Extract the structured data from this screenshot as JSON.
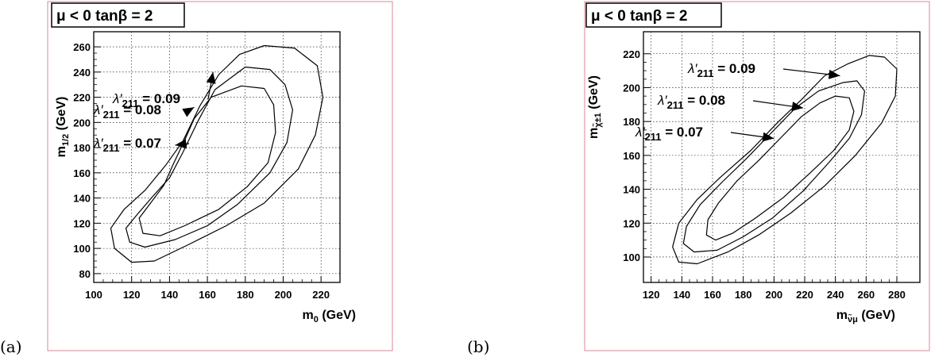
{
  "chart_data": [
    {
      "type": "contour",
      "panel_label": "(a)",
      "title": "μ < 0   tanβ = 2",
      "xlabel": "m0 (GeV)",
      "ylabel": "m1/2 (GeV)",
      "xlim": [
        100,
        230
      ],
      "ylim": [
        73,
        272
      ],
      "xticks": [
        100,
        120,
        140,
        160,
        180,
        200,
        220
      ],
      "yticks": [
        80,
        100,
        120,
        140,
        160,
        180,
        200,
        220,
        240,
        260
      ],
      "grid": true,
      "contours": [
        {
          "label": "λ′211 = 0.09",
          "points": [
            [
              190,
              261
            ],
            [
              206,
              259
            ],
            [
              218,
              245
            ],
            [
              221,
              220
            ],
            [
              217,
              190
            ],
            [
              208,
              163
            ],
            [
              190,
              136
            ],
            [
              170,
              118
            ],
            [
              150,
              103
            ],
            [
              132,
              90
            ],
            [
              120,
              89
            ],
            [
              111,
              100
            ],
            [
              109,
              116
            ],
            [
              116,
              131
            ],
            [
              127,
              146
            ],
            [
              138,
              166
            ],
            [
              147,
              185
            ],
            [
              156,
              213
            ],
            [
              166,
              238
            ],
            [
              177,
              254
            ],
            [
              190,
              261
            ]
          ]
        },
        {
          "label": "λ′211 = 0.08",
          "points": [
            [
              180,
              244
            ],
            [
              193,
              242
            ],
            [
              201,
              230
            ],
            [
              205,
              210
            ],
            [
              202,
              184
            ],
            [
              193,
              160
            ],
            [
              176,
              135
            ],
            [
              160,
              118
            ],
            [
              143,
              107
            ],
            [
              127,
              101
            ],
            [
              119,
              105
            ],
            [
              117,
              116
            ],
            [
              123,
              127
            ],
            [
              131,
              141
            ],
            [
              140,
              156
            ],
            [
              147,
              176
            ],
            [
              155,
              201
            ],
            [
              164,
              226
            ],
            [
              180,
              244
            ]
          ]
        },
        {
          "label": "λ′211 = 0.07",
          "points": [
            [
              178,
              229
            ],
            [
              190,
              227
            ],
            [
              195,
              214
            ],
            [
              196,
              192
            ],
            [
              192,
              168
            ],
            [
              181,
              149
            ],
            [
              166,
              131
            ],
            [
              148,
              118
            ],
            [
              135,
              110
            ],
            [
              126,
              112
            ],
            [
              124,
              124
            ],
            [
              130,
              136
            ],
            [
              137,
              150
            ],
            [
              142,
              167
            ],
            [
              148,
              186
            ],
            [
              153,
              203
            ],
            [
              162,
              220
            ],
            [
              178,
              229
            ]
          ]
        }
      ],
      "annotations": [
        {
          "text": "λ′211 = 0.09",
          "arrow_to": [
            163,
            240
          ]
        },
        {
          "text": "λ′211 = 0.08",
          "arrow_to": [
            153,
            212
          ]
        },
        {
          "text": "λ′211 = 0.07",
          "arrow_to": [
            143,
            182
          ]
        }
      ]
    },
    {
      "type": "contour",
      "panel_label": "(b)",
      "title": "μ < 0   tanβ = 2",
      "xlabel": "mν̃μ (GeV)",
      "ylabel": "mχ̃±1 (GeV)",
      "xlim": [
        115,
        295
      ],
      "ylim": [
        85,
        233
      ],
      "xticks": [
        120,
        140,
        160,
        180,
        200,
        220,
        240,
        260,
        280
      ],
      "yticks": [
        100,
        120,
        140,
        160,
        180,
        200,
        220
      ],
      "grid": true,
      "contours": [
        {
          "label": "λ′211 = 0.09",
          "points": [
            [
              262,
              219
            ],
            [
              272,
              218
            ],
            [
              280,
              211
            ],
            [
              279,
              195
            ],
            [
              270,
              179
            ],
            [
              253,
              160
            ],
            [
              233,
              142
            ],
            [
              211,
              126
            ],
            [
              190,
              113
            ],
            [
              170,
              103
            ],
            [
              150,
              96
            ],
            [
              138,
              97
            ],
            [
              134,
              106
            ],
            [
              138,
              120
            ],
            [
              150,
              134
            ],
            [
              165,
              147
            ],
            [
              185,
              163
            ],
            [
              203,
              180
            ],
            [
              218,
              193
            ],
            [
              233,
              207
            ],
            [
              248,
              214
            ],
            [
              262,
              219
            ]
          ]
        },
        {
          "label": "λ′211 = 0.08",
          "points": [
            [
              245,
              203
            ],
            [
              254,
              204
            ],
            [
              259,
              198
            ],
            [
              257,
              184
            ],
            [
              249,
              170
            ],
            [
              236,
              156
            ],
            [
              219,
              139
            ],
            [
              199,
              123
            ],
            [
              180,
              112
            ],
            [
              163,
              104
            ],
            [
              148,
              103
            ],
            [
              141,
              108
            ],
            [
              143,
              118
            ],
            [
              152,
              131
            ],
            [
              166,
              144
            ],
            [
              182,
              158
            ],
            [
              199,
              174
            ],
            [
              214,
              188
            ],
            [
              229,
              198
            ],
            [
              245,
              203
            ]
          ]
        },
        {
          "label": "λ′211 = 0.07",
          "points": [
            [
              240,
              195
            ],
            [
              249,
              194
            ],
            [
              252,
              186
            ],
            [
              249,
              175
            ],
            [
              239,
              163
            ],
            [
              224,
              150
            ],
            [
              206,
              135
            ],
            [
              188,
              123
            ],
            [
              173,
              114
            ],
            [
              162,
              110
            ],
            [
              156,
              113
            ],
            [
              157,
              122
            ],
            [
              164,
              132
            ],
            [
              176,
              145
            ],
            [
              190,
              157
            ],
            [
              204,
              170
            ],
            [
              218,
              183
            ],
            [
              230,
              191
            ],
            [
              240,
              195
            ]
          ]
        }
      ],
      "annotations": [
        {
          "text": "λ′211 = 0.09",
          "arrow_to": [
            243,
            207
          ]
        },
        {
          "text": "λ′211 = 0.08",
          "arrow_to": [
            219,
            188
          ]
        },
        {
          "text": "λ′211 = 0.07",
          "arrow_to": [
            200,
            170
          ]
        }
      ]
    }
  ]
}
